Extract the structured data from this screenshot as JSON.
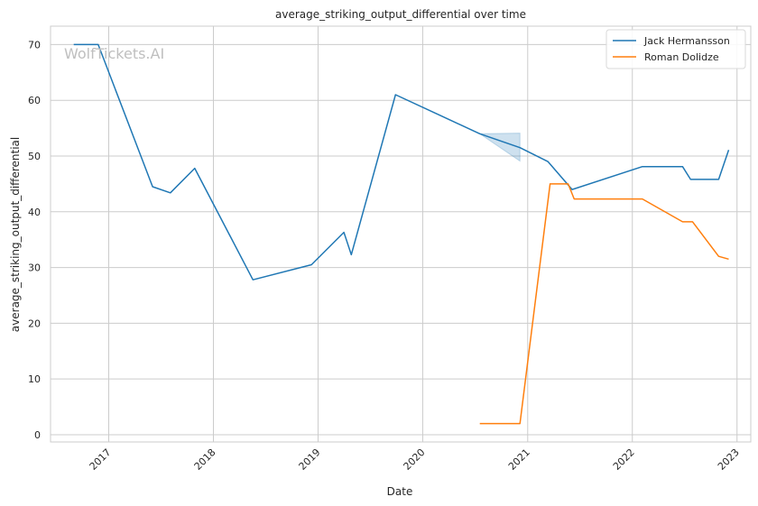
{
  "chart_data": {
    "type": "line",
    "title": "average_striking_output_differential over time",
    "xlabel": "Date",
    "ylabel": "average_striking_output_differential",
    "watermark": "WolfTickets.AI",
    "x_ticks": [
      "2017",
      "2018",
      "2019",
      "2020",
      "2021",
      "2022",
      "2023"
    ],
    "y_ticks": [
      0,
      10,
      20,
      30,
      40,
      50,
      60,
      70
    ],
    "xlim": [
      "2016-06-12",
      "2023-02-18"
    ],
    "ylim": [
      -1.3,
      73.3
    ],
    "grid": true,
    "legend_position": "top-right",
    "series": [
      {
        "name": "Jack Hermansson",
        "color": "#1f77b4",
        "points": [
          [
            "2016-09-01",
            70.0
          ],
          [
            "2016-11-25",
            70.0
          ],
          [
            "2017-06-03",
            44.5
          ],
          [
            "2017-08-04",
            43.4
          ],
          [
            "2017-10-28",
            47.8
          ],
          [
            "2018-05-19",
            27.8
          ],
          [
            "2018-12-09",
            30.5
          ],
          [
            "2019-04-01",
            36.3
          ],
          [
            "2019-04-27",
            32.3
          ],
          [
            "2019-09-28",
            61.0
          ],
          [
            "2020-07-18",
            54.0
          ],
          [
            "2020-12-05",
            51.5
          ],
          [
            "2021-03-13",
            49.0
          ],
          [
            "2021-06-05",
            44.0
          ],
          [
            "2022-02-05",
            48.1
          ],
          [
            "2022-06-25",
            48.1
          ],
          [
            "2022-07-23",
            45.8
          ],
          [
            "2022-10-29",
            45.8
          ],
          [
            "2022-12-03",
            51.1
          ]
        ],
        "band": {
          "x": [
            "2020-07-18",
            "2020-12-05"
          ],
          "lower": [
            54.0,
            49.1
          ],
          "upper": [
            54.0,
            54.1
          ]
        }
      },
      {
        "name": "Roman Dolidze",
        "color": "#ff7f0e",
        "points": [
          [
            "2020-07-18",
            2.0
          ],
          [
            "2020-12-05",
            2.0
          ],
          [
            "2021-03-20",
            45.0
          ],
          [
            "2021-05-22",
            45.0
          ],
          [
            "2021-06-12",
            42.3
          ],
          [
            "2022-02-05",
            42.3
          ],
          [
            "2022-06-25",
            38.2
          ],
          [
            "2022-07-30",
            38.2
          ],
          [
            "2022-10-29",
            32.0
          ],
          [
            "2022-12-03",
            31.5
          ]
        ]
      }
    ]
  }
}
